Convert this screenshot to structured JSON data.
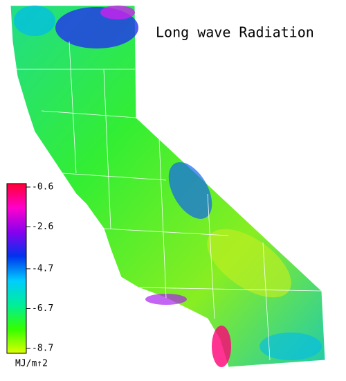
{
  "title": "Long wave Radiation",
  "colorbar": {
    "range": [
      -8.7,
      -0.6
    ],
    "ticks": [
      -0.6,
      -2.6,
      -4.7,
      -6.7,
      -8.7
    ],
    "label": "MJ/m↑2",
    "colors": [
      "#ddff00",
      "#33ff00",
      "#00ee99",
      "#00ccff",
      "#0033ee",
      "#8800ee",
      "#ff00cc",
      "#ff0033"
    ]
  }
}
